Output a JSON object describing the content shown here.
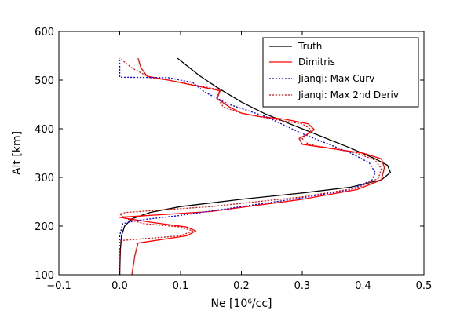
{
  "chart_data": {
    "type": "line",
    "xlabel": "Ne [10⁶/cc]",
    "ylabel": "Alt [km]",
    "xlim": [
      -0.1,
      0.5
    ],
    "ylim": [
      100,
      600
    ],
    "xticks": [
      -0.1,
      0.0,
      0.1,
      0.2,
      0.3,
      0.4,
      0.5
    ],
    "yticks": [
      100,
      200,
      300,
      400,
      500,
      600
    ],
    "xtick_labels": [
      "−0.1",
      "0.0",
      "0.1",
      "0.2",
      "0.3",
      "0.4",
      "0.5"
    ],
    "ytick_labels": [
      "100",
      "200",
      "300",
      "400",
      "500",
      "600"
    ],
    "grid": false,
    "legend_position": "upper-right",
    "series": [
      {
        "name": "Truth",
        "color": "#000000",
        "dash": "solid",
        "points": [
          [
            0.0,
            100
          ],
          [
            0.001,
            150
          ],
          [
            0.003,
            180
          ],
          [
            0.008,
            200
          ],
          [
            0.02,
            215
          ],
          [
            0.05,
            228
          ],
          [
            0.1,
            240
          ],
          [
            0.2,
            255
          ],
          [
            0.3,
            268
          ],
          [
            0.38,
            280
          ],
          [
            0.43,
            295
          ],
          [
            0.445,
            310
          ],
          [
            0.44,
            325
          ],
          [
            0.42,
            338
          ],
          [
            0.38,
            360
          ],
          [
            0.3,
            400
          ],
          [
            0.24,
            430
          ],
          [
            0.2,
            455
          ],
          [
            0.16,
            485
          ],
          [
            0.13,
            510
          ],
          [
            0.11,
            530
          ],
          [
            0.095,
            545
          ]
        ]
      },
      {
        "name": "Dimitris",
        "color": "#ff0000",
        "dash": "solid",
        "points": [
          [
            0.02,
            100
          ],
          [
            0.025,
            140
          ],
          [
            0.03,
            165
          ],
          [
            0.11,
            180
          ],
          [
            0.125,
            190
          ],
          [
            0.11,
            198
          ],
          [
            0.05,
            208
          ],
          [
            0.0,
            218
          ],
          [
            0.15,
            230
          ],
          [
            0.3,
            255
          ],
          [
            0.39,
            275
          ],
          [
            0.43,
            295
          ],
          [
            0.435,
            320
          ],
          [
            0.43,
            338
          ],
          [
            0.4,
            350
          ],
          [
            0.3,
            368
          ],
          [
            0.295,
            380
          ],
          [
            0.31,
            390
          ],
          [
            0.32,
            398
          ],
          [
            0.31,
            410
          ],
          [
            0.27,
            420
          ],
          [
            0.23,
            425
          ],
          [
            0.2,
            432
          ],
          [
            0.18,
            445
          ],
          [
            0.16,
            462
          ],
          [
            0.165,
            478
          ],
          [
            0.08,
            500
          ],
          [
            0.045,
            508
          ],
          [
            0.035,
            525
          ],
          [
            0.03,
            545
          ]
        ]
      },
      {
        "name": "Jianqi: Max Curv",
        "color": "#0000ff",
        "dash": "dotted",
        "points": [
          [
            0.0,
            100
          ],
          [
            0.0,
            180
          ],
          [
            0.005,
            205
          ],
          [
            0.03,
            212
          ],
          [
            0.1,
            222
          ],
          [
            0.2,
            240
          ],
          [
            0.3,
            258
          ],
          [
            0.38,
            275
          ],
          [
            0.415,
            295
          ],
          [
            0.42,
            310
          ],
          [
            0.41,
            330
          ],
          [
            0.38,
            350
          ],
          [
            0.3,
            390
          ],
          [
            0.24,
            425
          ],
          [
            0.18,
            450
          ],
          [
            0.14,
            475
          ],
          [
            0.12,
            495
          ],
          [
            0.08,
            505
          ],
          [
            0.0,
            506
          ],
          [
            0.0,
            545
          ]
        ]
      },
      {
        "name": "Jianqi: Max 2nd Deriv",
        "color": "#ff0000",
        "dash": "dotted",
        "points": [
          [
            0.0,
            100
          ],
          [
            0.0,
            170
          ],
          [
            0.1,
            180
          ],
          [
            0.12,
            190
          ],
          [
            0.1,
            198
          ],
          [
            0.04,
            205
          ],
          [
            0.01,
            215
          ],
          [
            0.0,
            225
          ],
          [
            0.01,
            228
          ],
          [
            0.15,
            240
          ],
          [
            0.3,
            260
          ],
          [
            0.39,
            278
          ],
          [
            0.425,
            298
          ],
          [
            0.43,
            318
          ],
          [
            0.42,
            335
          ],
          [
            0.39,
            350
          ],
          [
            0.31,
            368
          ],
          [
            0.3,
            380
          ],
          [
            0.31,
            390
          ],
          [
            0.315,
            398
          ],
          [
            0.3,
            410
          ],
          [
            0.25,
            420
          ],
          [
            0.2,
            432
          ],
          [
            0.17,
            445
          ],
          [
            0.16,
            465
          ],
          [
            0.165,
            480
          ],
          [
            0.08,
            500
          ],
          [
            0.05,
            505
          ],
          [
            0.02,
            525
          ],
          [
            0.0,
            545
          ]
        ]
      }
    ]
  }
}
